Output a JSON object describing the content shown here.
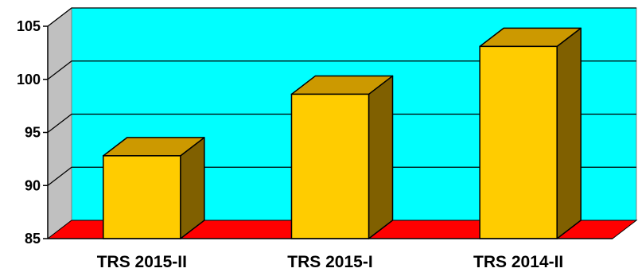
{
  "chart_data": {
    "type": "bar",
    "categories": [
      "TRS 2015-II",
      "TRS 2015-I",
      "TRS 2014-II"
    ],
    "values": [
      92.8,
      98.6,
      103.1
    ],
    "yticks": [
      "85",
      "90",
      "95",
      "100",
      "105"
    ],
    "ylim": [
      85,
      105
    ],
    "title": "",
    "xlabel": "",
    "ylabel": "",
    "grid": true,
    "legend": "none",
    "style": "3d",
    "colors": {
      "wall": "#00FFFF",
      "floor": "#FF0000",
      "bar_front": "#FFCC00",
      "bar_top": "#CC9900",
      "bar_side": "#806000",
      "wall_side": "#C0C0C0"
    }
  }
}
